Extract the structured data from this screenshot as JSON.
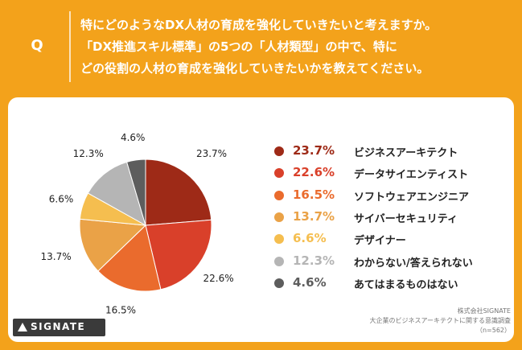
{
  "question": {
    "mark": "Q",
    "lines": [
      "特にどのようなDX人材の育成を強化していきたいと考えますか。",
      "「DX推進スキル標準」の5つの「人材類型」の中で、特に",
      "どの役割の人材の育成を強化していきたいかを教えてください。"
    ]
  },
  "chart_data": {
    "type": "pie",
    "start": "12 o'clock",
    "direction": "clockwise",
    "slices": [
      {
        "label": "ビジネスアーキテクト",
        "value": 23.7,
        "display": "23.7%",
        "color": "#9e2a17"
      },
      {
        "label": "データサイエンティスト",
        "value": 22.6,
        "display": "22.6%",
        "color": "#d9402a"
      },
      {
        "label": "ソフトウェアエンジニア",
        "value": 16.5,
        "display": "16.5%",
        "color": "#ea6b2d"
      },
      {
        "label": "サイバーセキュリティ",
        "value": 13.7,
        "display": "13.7%",
        "color": "#eaa247"
      },
      {
        "label": "デザイナー",
        "value": 6.6,
        "display": "6.6%",
        "color": "#f5be4f"
      },
      {
        "label": "わからない/答えられない",
        "value": 12.3,
        "display": "12.3%",
        "color": "#b5b5b5"
      },
      {
        "label": "あてはまるものはない",
        "value": 4.6,
        "display": "4.6%",
        "color": "#5d5d5d"
      }
    ],
    "legend_position": "right"
  },
  "brand": {
    "logo_text": "SIGNATE"
  },
  "source": {
    "lines": [
      "株式会社SIGNATE",
      "大企業のビジネスアーキテクトに関する意識調査",
      "（n=562）"
    ]
  }
}
